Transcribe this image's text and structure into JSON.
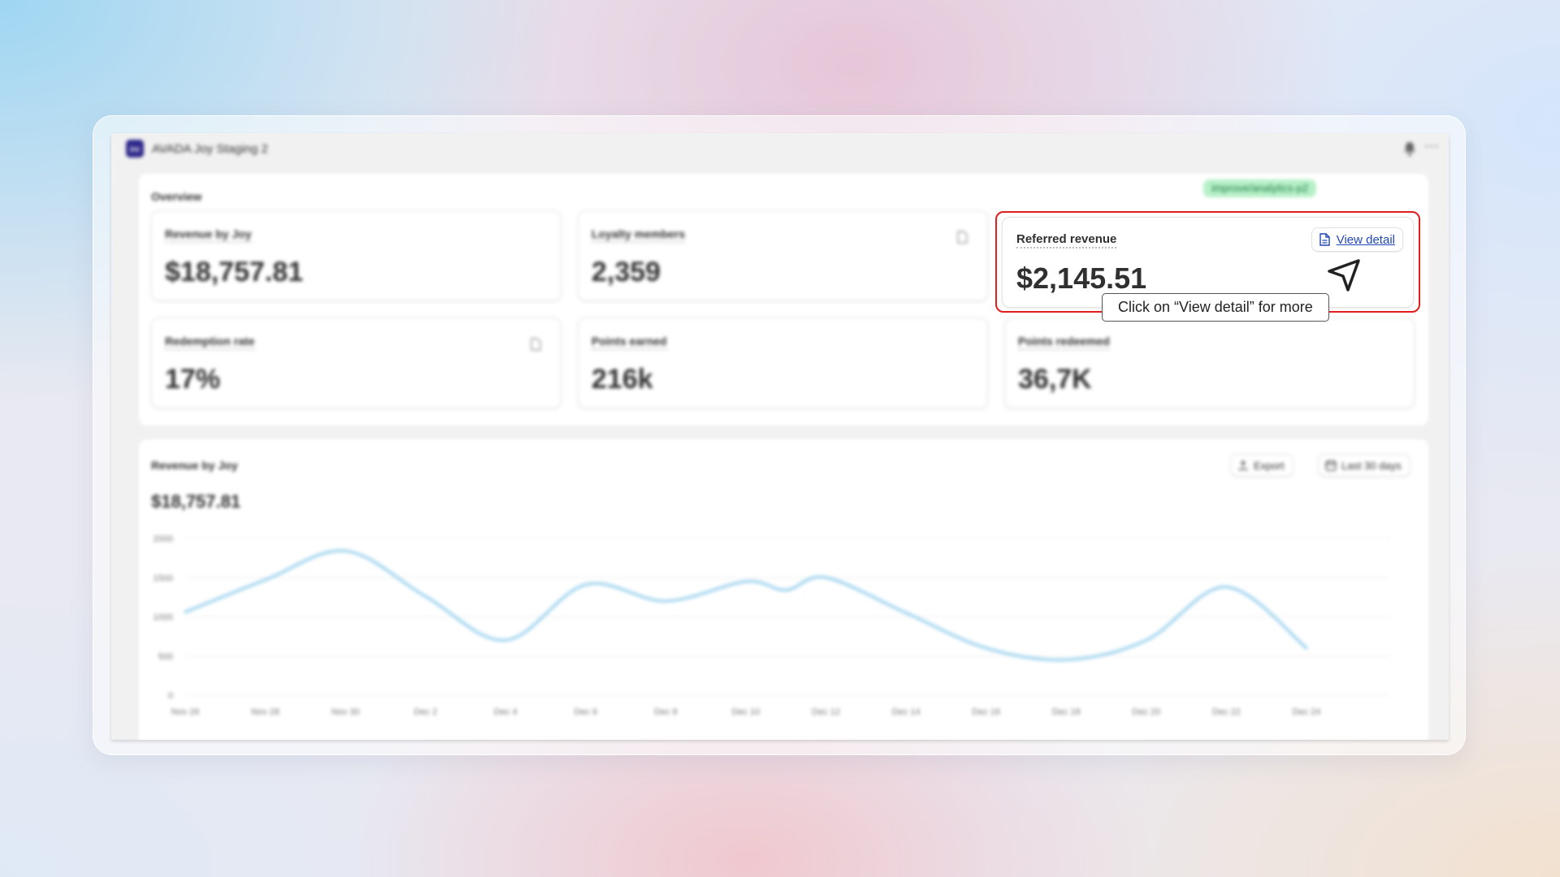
{
  "app": {
    "logo_text": "joy",
    "title": "AVADA Joy Staging 2"
  },
  "overview": {
    "title": "Overview",
    "tag": "improve/analytics-p2",
    "metrics": [
      {
        "label": "Revenue by Joy",
        "value": "$18,757.81"
      },
      {
        "label": "Loyalty members",
        "value": "2,359"
      },
      {
        "label": "Redemption rate",
        "value": "17%"
      },
      {
        "label": "Points earned",
        "value": "216k"
      },
      {
        "label": "Points redeemed",
        "value": "36,7K"
      }
    ],
    "focus": {
      "label": "Referred revenue",
      "value": "$2,145.51",
      "view_detail": "View detail",
      "tooltip": "Click on “View detail” for more"
    }
  },
  "chart_section": {
    "title": "Revenue by Joy",
    "total": "$18,757.81",
    "export_label": "Export",
    "range_label": "Last 30 days"
  },
  "colors": {
    "line": "#9ed3ee",
    "highlight": "#e11d1d",
    "link": "#2046b8"
  },
  "chart_data": {
    "type": "line",
    "x": [
      "Nov 26",
      "Nov 28",
      "Nov 30",
      "Dec 2",
      "Dec 4",
      "Dec 6",
      "Dec 8",
      "Dec 10",
      "Dec 11",
      "Dec 12",
      "Dec 14",
      "Dec 16",
      "Dec 18",
      "Dec 20",
      "Dec 22",
      "Dec 24"
    ],
    "x_ticks": [
      "Nov 26",
      "Nov 28",
      "Nov 30",
      "Dec 2",
      "Dec 4",
      "Dec 6",
      "Dec 8",
      "Dec 10",
      "Dec 12",
      "Dec 14",
      "Dec 16",
      "Dec 18",
      "Dec 20",
      "Dec 22",
      "Dec 24"
    ],
    "series": [
      {
        "values": [
          1060,
          1470,
          1840,
          1260,
          700,
          1410,
          1200,
          1450,
          1340,
          1500,
          1050,
          600,
          450,
          700,
          1380,
          600
        ]
      }
    ],
    "y_ticks": [
      0,
      500,
      1000,
      1500,
      2000
    ],
    "ylim": [
      0,
      2000
    ],
    "grid": true
  }
}
